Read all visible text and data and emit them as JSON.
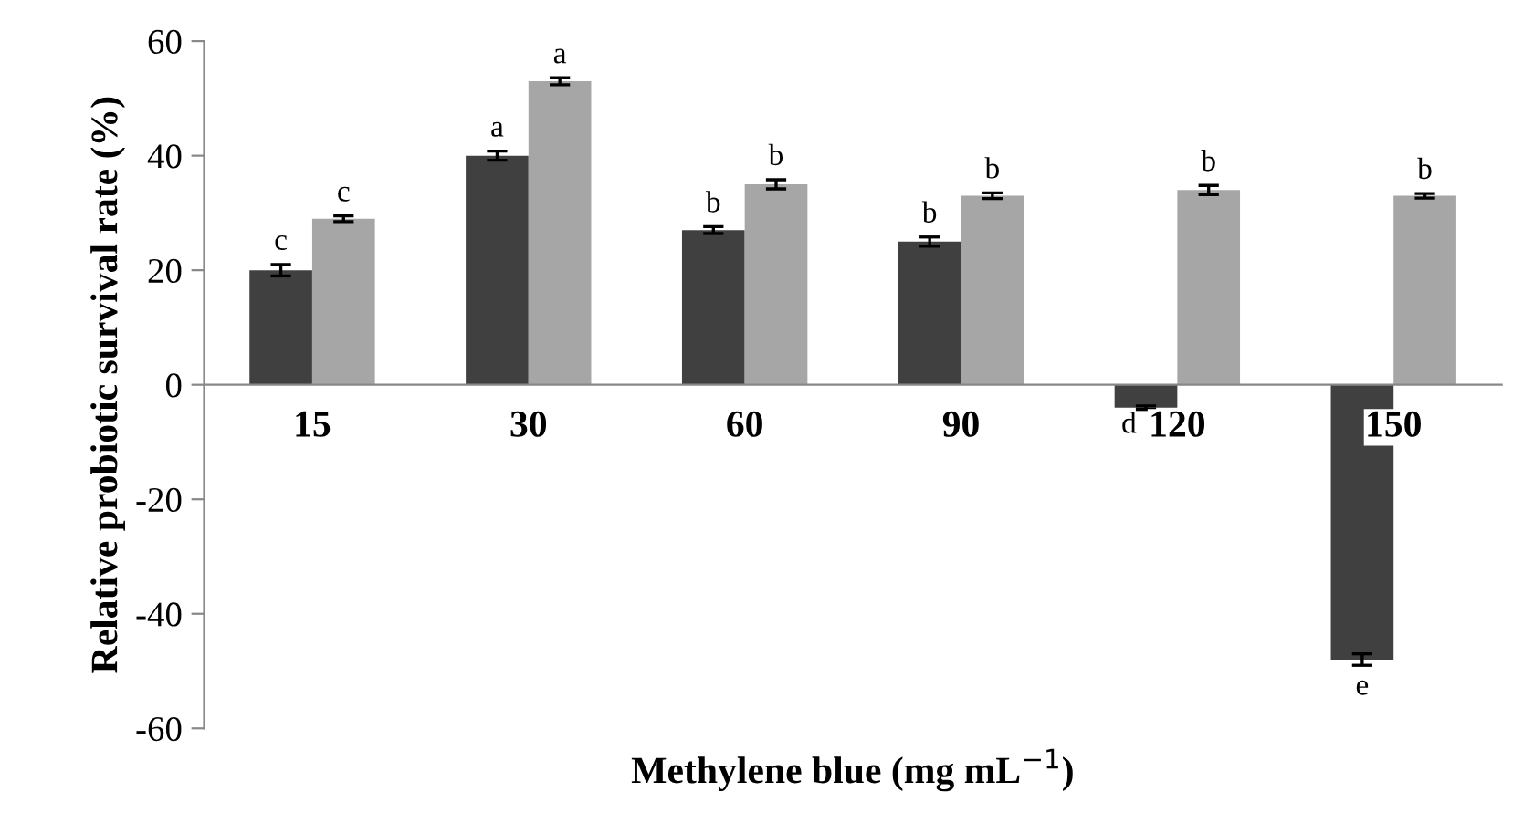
{
  "chart_data": {
    "type": "bar",
    "xlabel": "Methylene blue (mg mL$^{−1}$)",
    "ylabel": "Relative probiotic survival rate (%)",
    "categories": [
      "15",
      "30",
      "60",
      "90",
      "120",
      "150"
    ],
    "series": [
      {
        "color": "#404040",
        "values": [
          20,
          40,
          27,
          25,
          -4,
          -48
        ],
        "errors": [
          1,
          0.8,
          0.6,
          0.8,
          0.3,
          1
        ],
        "value_labels": [
          "c",
          "a",
          "b",
          "b",
          "d",
          "e"
        ]
      },
      {
        "color": "#a6a6a6",
        "values": [
          29,
          53,
          35,
          33,
          34,
          33
        ],
        "errors": [
          0.5,
          0.6,
          0.8,
          0.5,
          0.8,
          0.4
        ],
        "value_labels": [
          "c",
          "a",
          "b",
          "b",
          "b",
          "b"
        ]
      }
    ],
    "ylim": [
      -60,
      60
    ],
    "yticks": [
      -60,
      -40,
      -20,
      0,
      20,
      40,
      60
    ],
    "grid": false,
    "legend": false
  }
}
